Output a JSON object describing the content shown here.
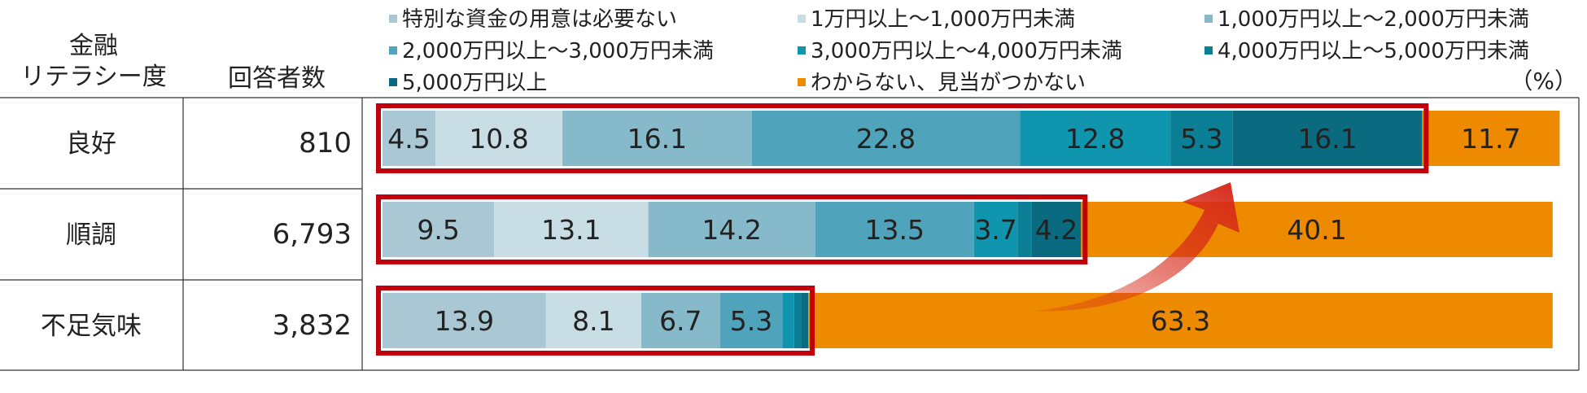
{
  "header": {
    "literacy_line1": "金融",
    "literacy_line2": "リテラシー度",
    "respondents": "回答者数"
  },
  "unit": "（%）",
  "colors": {
    "seg1": "#a9c8d4",
    "seg2": "#c9dde5",
    "seg3": "#86b9c9",
    "seg4": "#4fa3bb",
    "seg5": "#0f95ad",
    "seg6": "#0a7f96",
    "seg7": "#0a6b80",
    "unknown": "#ee8a00",
    "highlight": "#c0000b",
    "arrow": "#d62a1a"
  },
  "chart_data": {
    "type": "bar",
    "orientation": "horizontal",
    "stacked": true,
    "xlim": [
      0,
      100
    ],
    "categories": [
      "良好",
      "順調",
      "不足気味"
    ],
    "respondents": [
      "810",
      "6,793",
      "3,832"
    ],
    "series": [
      {
        "name": "特別な資金の用意は必要ない",
        "values": [
          4.5,
          9.5,
          13.9
        ],
        "labels": [
          "4.5",
          "9.5",
          "13.9"
        ]
      },
      {
        "name": "1万円以上～1,000万円未満",
        "values": [
          10.8,
          13.1,
          8.1
        ],
        "labels": [
          "10.8",
          "13.1",
          "8.1"
        ]
      },
      {
        "name": "1,000万円以上～2,000万円未満",
        "values": [
          16.1,
          14.2,
          6.7
        ],
        "labels": [
          "16.1",
          "14.2",
          "6.7"
        ]
      },
      {
        "name": "2,000万円以上～3,000万円未満",
        "values": [
          22.8,
          13.5,
          5.3
        ],
        "labels": [
          "22.8",
          "13.5",
          "5.3"
        ]
      },
      {
        "name": "3,000万円以上～4,000万円未満",
        "values": [
          12.8,
          3.7,
          1.0
        ],
        "labels": [
          "12.8",
          "3.7",
          ""
        ]
      },
      {
        "name": "4,000万円以上～5,000万円未満",
        "values": [
          5.3,
          1.2,
          0.6
        ],
        "labels": [
          "5.3",
          "",
          ""
        ]
      },
      {
        "name": "5,000万円以上",
        "values": [
          16.1,
          4.2,
          0.6
        ],
        "labels": [
          "16.1",
          "4.2",
          ""
        ]
      },
      {
        "name": "わからない、見当がつかない",
        "values": [
          11.7,
          40.1,
          63.3
        ],
        "labels": [
          "11.7",
          "40.1",
          "63.3"
        ]
      }
    ],
    "legend": "top"
  }
}
